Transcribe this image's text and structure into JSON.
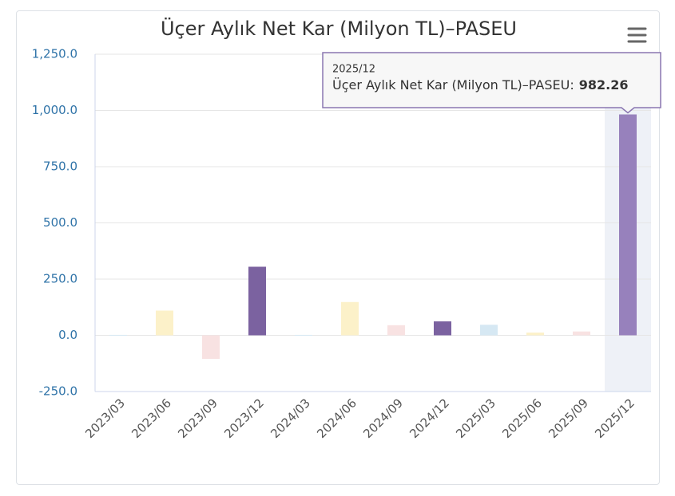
{
  "chart_data": {
    "type": "bar",
    "title": "Üçer Aylık Net Kar (Milyon TL)–PASEU",
    "categories": [
      "2023/03",
      "2023/06",
      "2023/09",
      "2023/12",
      "2024/03",
      "2024/06",
      "2024/09",
      "2024/12",
      "2025/03",
      "2025/06",
      "2025/09",
      "2025/12"
    ],
    "series": [
      {
        "name": "Üçer Aylık Net Kar (Milyon TL)–PASEU",
        "colors": [
          "#d6e8f3",
          "#fcf1c9",
          "#f8e2e2",
          "#7b62a0",
          "#d6e8f3",
          "#fcf1c9",
          "#f8e2e2",
          "#7b62a0",
          "#d6e8f3",
          "#fcf1c9",
          "#f8e2e2",
          "#9781bc"
        ],
        "values": [
          2,
          110,
          -105,
          305,
          2,
          148,
          45,
          62,
          47,
          12,
          17,
          982.26
        ]
      }
    ],
    "ylim": [
      -250,
      1250
    ],
    "yticks": [
      {
        "value": -250,
        "label": "-250.0"
      },
      {
        "value": 0,
        "label": "0.0"
      },
      {
        "value": 250,
        "label": "250.0"
      },
      {
        "value": 500,
        "label": "500.0"
      },
      {
        "value": 750,
        "label": "750.0"
      },
      {
        "value": 1000,
        "label": "1,000.0"
      },
      {
        "value": 1250,
        "label": "1,250.0"
      }
    ],
    "grid": true,
    "tooltip": {
      "label": "Üçer Aylık Net Kar (Milyon TL)–PASEU:"
    }
  }
}
